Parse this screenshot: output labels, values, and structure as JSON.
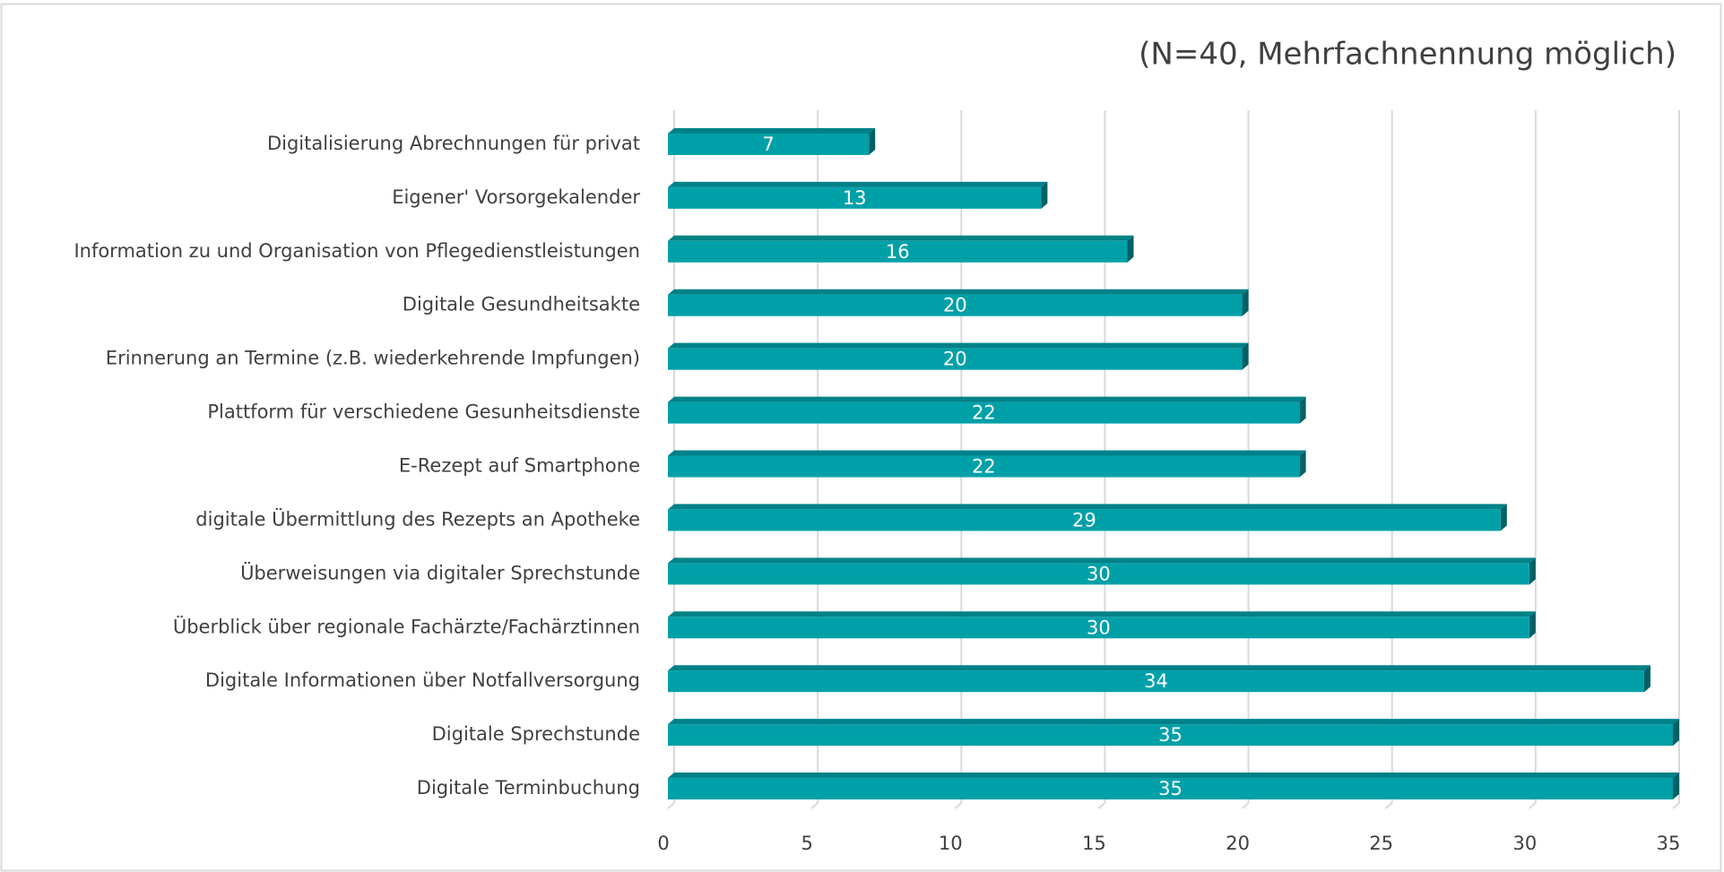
{
  "chart_data": {
    "type": "bar",
    "orientation": "horizontal",
    "subtitle": "(N=40, Mehrfachnennung möglich)",
    "categories": [
      "Digitalisierung Abrechnungen für privat",
      "Eigener' Vorsorgekalender",
      "Information zu und Organisation von Pflegedienstleistungen",
      "Digitale Gesundheitsakte",
      "Erinnerung an Termine (z.B. wiederkehrende Impfungen)",
      "Plattform für verschiedene Gesunheitsdienste",
      "E-Rezept auf Smartphone",
      "digitale Übermittlung des Rezepts an Apotheke",
      "Überweisungen via digitaler Sprechstunde",
      "Überblick über regionale Fachärzte/Fachärztinnen",
      "Digitale Informationen über Notfallversorgung",
      "Digitale Sprechstunde",
      "Digitale Terminbuchung"
    ],
    "values": [
      7,
      13,
      16,
      20,
      20,
      22,
      22,
      29,
      30,
      30,
      34,
      35,
      35
    ],
    "color": "#00a0a8",
    "xlim": [
      0,
      35
    ],
    "xticks": [
      0,
      5,
      10,
      15,
      20,
      25,
      30,
      35
    ],
    "grid": true
  }
}
